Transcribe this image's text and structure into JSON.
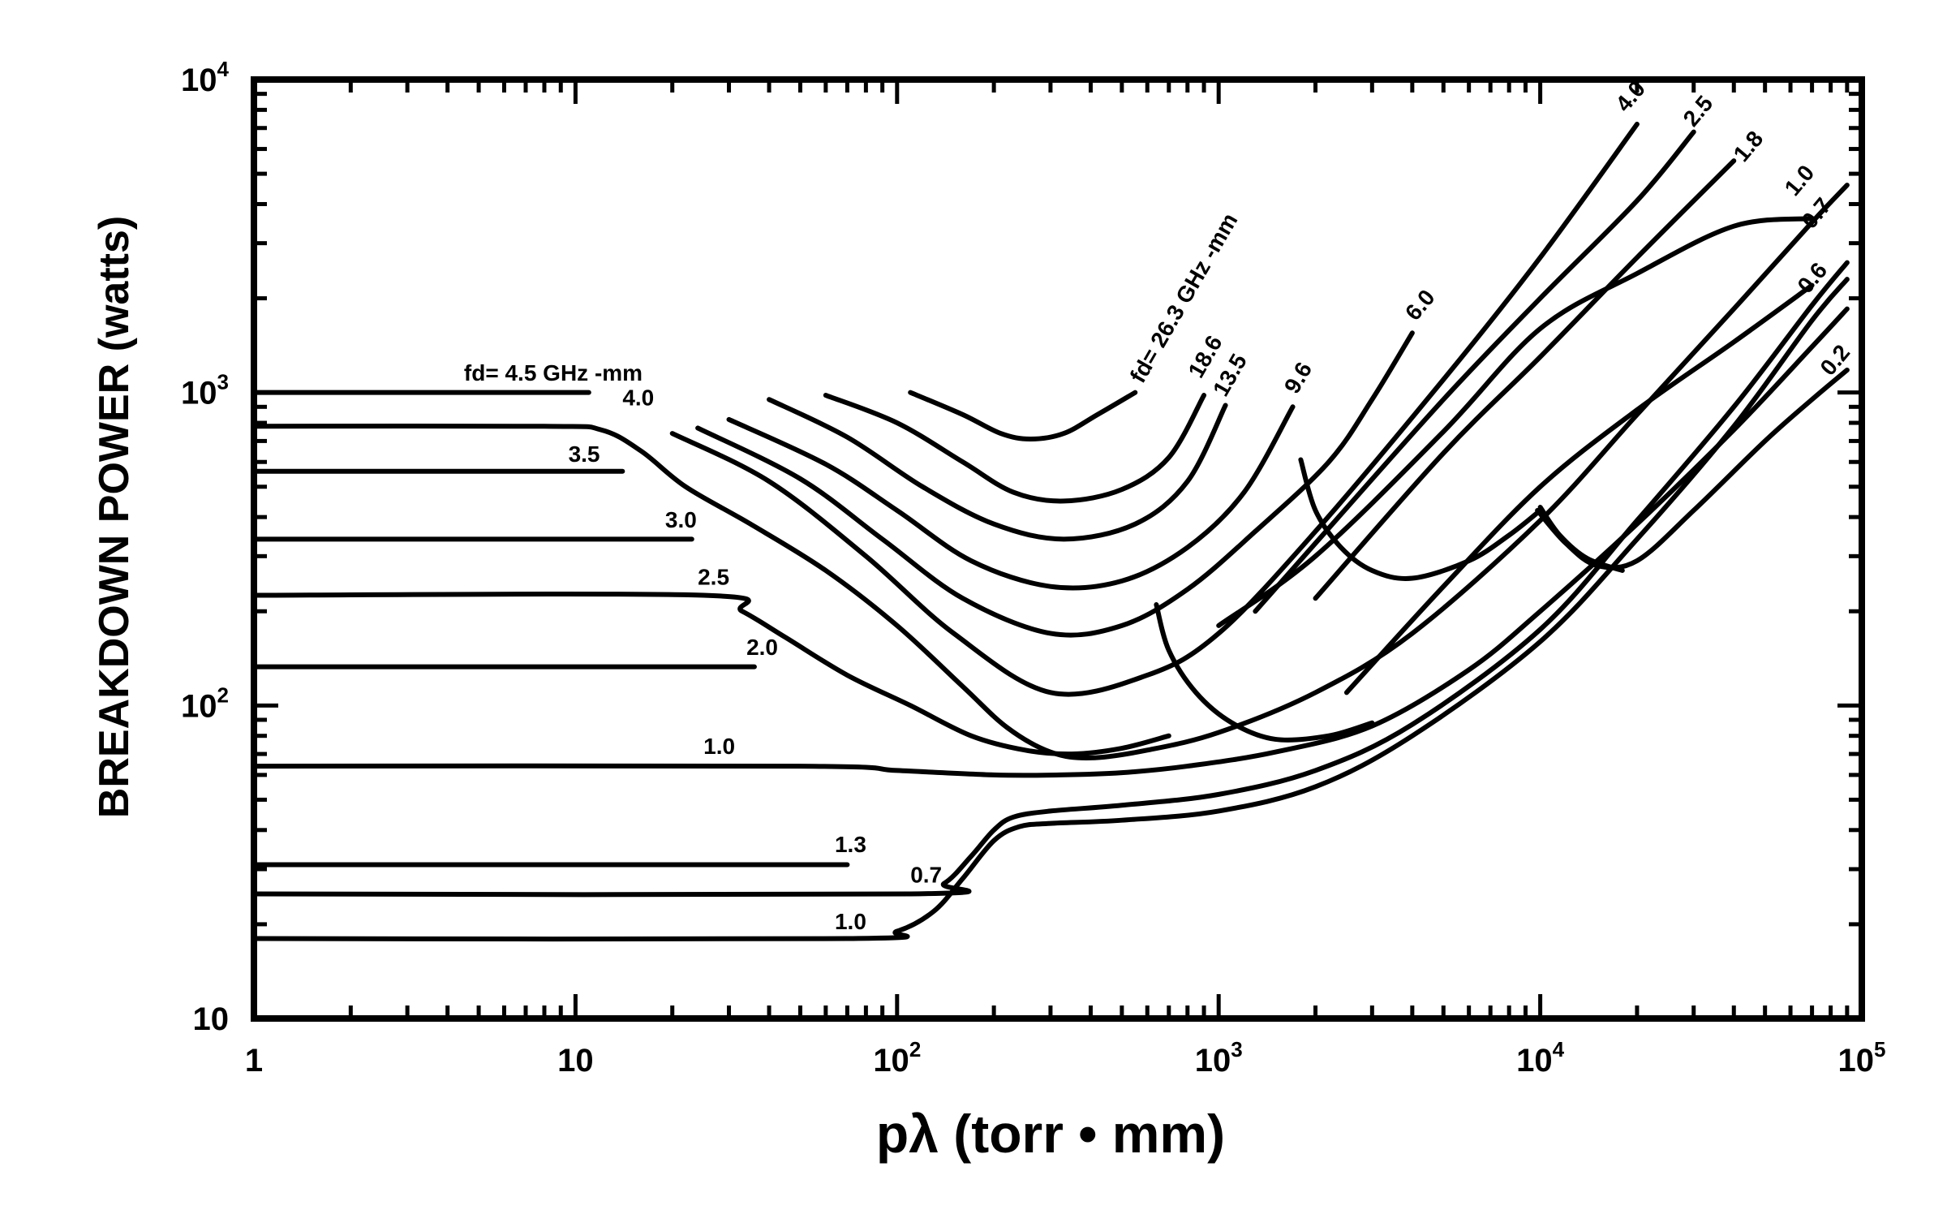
{
  "chart_data": {
    "type": "line",
    "xlabel": "pλ (torr • mm)",
    "ylabel": "BREAKDOWN POWER (watts)",
    "xscale": "log",
    "yscale": "log",
    "xlim": [
      1,
      100000
    ],
    "ylim": [
      10,
      10000
    ],
    "x_ticks": [
      {
        "value": 1,
        "base": "1",
        "exp": ""
      },
      {
        "value": 10,
        "base": "10",
        "exp": ""
      },
      {
        "value": 100,
        "base": "10",
        "exp": "2"
      },
      {
        "value": 1000,
        "base": "10",
        "exp": "3"
      },
      {
        "value": 10000,
        "base": "10",
        "exp": "4"
      },
      {
        "value": 100000,
        "base": "10",
        "exp": "5"
      }
    ],
    "y_ticks": [
      {
        "value": 10,
        "base": "10",
        "exp": ""
      },
      {
        "value": 100,
        "base": "10",
        "exp": "2"
      },
      {
        "value": 1000,
        "base": "10",
        "exp": "3"
      },
      {
        "value": 10000,
        "base": "10",
        "exp": "4"
      }
    ],
    "series": [
      {
        "name": "fd= 4.5 GHz -mm",
        "points": [
          [
            1,
            1000
          ],
          [
            11,
            1000
          ]
        ]
      },
      {
        "name": "4.0",
        "points": [
          [
            1,
            780
          ],
          [
            8,
            780
          ],
          [
            12,
            760
          ],
          [
            16,
            650
          ],
          [
            22,
            500
          ],
          [
            35,
            380
          ],
          [
            60,
            270
          ],
          [
            100,
            180
          ],
          [
            160,
            115
          ],
          [
            220,
            85
          ],
          [
            300,
            71
          ],
          [
            400,
            68
          ],
          [
            600,
            72
          ],
          [
            1000,
            82
          ],
          [
            2000,
            110
          ],
          [
            4000,
            170
          ],
          [
            10000,
            390
          ],
          [
            20000,
            850
          ],
          [
            40000,
            1850
          ],
          [
            70000,
            3500
          ],
          [
            90000,
            4600
          ]
        ]
      },
      {
        "name": "3.5",
        "points": [
          [
            1,
            560
          ],
          [
            14,
            560
          ]
        ]
      },
      {
        "name": "3.0",
        "points": [
          [
            1,
            340
          ],
          [
            23,
            340
          ]
        ]
      },
      {
        "name": "2.5",
        "points": [
          [
            1,
            225
          ],
          [
            25,
            225
          ],
          [
            33,
            200
          ],
          [
            45,
            165
          ],
          [
            70,
            125
          ],
          [
            110,
            100
          ],
          [
            170,
            80
          ],
          [
            250,
            72
          ],
          [
            350,
            70
          ],
          [
            500,
            73
          ],
          [
            700,
            80
          ]
        ]
      },
      {
        "name": "2.0",
        "points": [
          [
            1,
            133
          ],
          [
            36,
            133
          ]
        ]
      },
      {
        "name": "1.0",
        "points": [
          [
            1,
            64
          ],
          [
            50,
            64
          ],
          [
            100,
            62
          ],
          [
            200,
            60
          ],
          [
            320,
            60
          ],
          [
            500,
            61
          ],
          [
            800,
            64
          ],
          [
            1500,
            71
          ],
          [
            3000,
            86
          ],
          [
            6000,
            130
          ],
          [
            10000,
            200
          ],
          [
            20000,
            380
          ],
          [
            40000,
            760
          ],
          [
            70000,
            1400
          ],
          [
            90000,
            1850
          ]
        ]
      },
      {
        "name": "1.3",
        "points": [
          [
            1,
            31
          ],
          [
            70,
            31
          ]
        ]
      },
      {
        "name": "0.7",
        "points": [
          [
            1,
            25
          ],
          [
            110,
            25
          ],
          [
            140,
            27
          ],
          [
            170,
            33
          ],
          [
            200,
            40
          ],
          [
            230,
            44
          ],
          [
            300,
            46
          ],
          [
            500,
            48
          ],
          [
            1000,
            52
          ],
          [
            2000,
            62
          ],
          [
            4000,
            87
          ],
          [
            10000,
            175
          ],
          [
            20000,
            390
          ],
          [
            40000,
            900
          ],
          [
            70000,
            1900
          ],
          [
            90000,
            2600
          ]
        ]
      },
      {
        "name": "1.0",
        "points": [
          [
            1,
            18
          ],
          [
            70,
            18
          ],
          [
            100,
            19
          ],
          [
            130,
            22
          ],
          [
            160,
            28
          ],
          [
            200,
            37
          ],
          [
            240,
            41
          ],
          [
            300,
            42
          ],
          [
            500,
            43
          ],
          [
            1000,
            46
          ],
          [
            2000,
            55
          ],
          [
            4000,
            80
          ],
          [
            10000,
            160
          ],
          [
            20000,
            340
          ],
          [
            40000,
            780
          ],
          [
            70000,
            1700
          ],
          [
            90000,
            2300
          ]
        ]
      },
      {
        "name": "fd= 26.3 GHz -mm",
        "points": [
          [
            110,
            1000
          ],
          [
            160,
            850
          ],
          [
            210,
            740
          ],
          [
            260,
            710
          ],
          [
            330,
            740
          ],
          [
            420,
            850
          ],
          [
            550,
            1000
          ]
        ]
      },
      {
        "name": "18.6",
        "points": [
          [
            60,
            980
          ],
          [
            100,
            800
          ],
          [
            160,
            600
          ],
          [
            230,
            480
          ],
          [
            330,
            450
          ],
          [
            500,
            490
          ],
          [
            700,
            620
          ],
          [
            900,
            980
          ]
        ]
      },
      {
        "name": "13.5",
        "points": [
          [
            40,
            950
          ],
          [
            70,
            720
          ],
          [
            120,
            500
          ],
          [
            200,
            380
          ],
          [
            330,
            340
          ],
          [
            550,
            380
          ],
          [
            800,
            520
          ],
          [
            1050,
            910
          ]
        ]
      },
      {
        "name": "9.6",
        "points": [
          [
            30,
            820
          ],
          [
            60,
            590
          ],
          [
            100,
            420
          ],
          [
            170,
            290
          ],
          [
            300,
            240
          ],
          [
            500,
            250
          ],
          [
            800,
            320
          ],
          [
            1200,
            480
          ],
          [
            1700,
            900
          ]
        ]
      },
      {
        "name": "6.0",
        "points": [
          [
            24,
            770
          ],
          [
            50,
            530
          ],
          [
            90,
            340
          ],
          [
            160,
            220
          ],
          [
            300,
            170
          ],
          [
            500,
            180
          ],
          [
            800,
            235
          ],
          [
            1300,
            360
          ],
          [
            2200,
            600
          ],
          [
            3000,
            950
          ],
          [
            4000,
            1550
          ]
        ]
      },
      {
        "name": "4.0",
        "points": [
          [
            20,
            740
          ],
          [
            40,
            520
          ],
          [
            80,
            300
          ],
          [
            150,
            170
          ],
          [
            300,
            110
          ],
          [
            600,
            125
          ],
          [
            1000,
            170
          ],
          [
            2000,
            360
          ],
          [
            5000,
            1100
          ],
          [
            10000,
            2700
          ],
          [
            20000,
            7200
          ]
        ]
      },
      {
        "name": "2.5",
        "points": [
          [
            1300,
            200
          ],
          [
            2000,
            330
          ],
          [
            5000,
            950
          ],
          [
            10000,
            2000
          ],
          [
            20000,
            4100
          ],
          [
            30000,
            6800
          ]
        ]
      },
      {
        "name": "1.8",
        "points": [
          [
            2000,
            220
          ],
          [
            5000,
            640
          ],
          [
            10000,
            1300
          ],
          [
            20000,
            2700
          ],
          [
            40000,
            5500
          ]
        ]
      },
      {
        "name": "0.6",
        "points": [
          [
            2500,
            110
          ],
          [
            5000,
            240
          ],
          [
            10000,
            500
          ],
          [
            20000,
            880
          ],
          [
            40000,
            1450
          ],
          [
            70000,
            2200
          ]
        ]
      },
      {
        "name": "0.2",
        "points": [
          [
            9800,
            420
          ],
          [
            12000,
            330
          ],
          [
            15000,
            280
          ],
          [
            20000,
            290
          ],
          [
            30000,
            420
          ],
          [
            50000,
            700
          ],
          [
            70000,
            950
          ],
          [
            90000,
            1180
          ]
        ]
      },
      {
        "name": "0.7",
        "points": [
          [
            1000,
            180
          ],
          [
            2000,
            300
          ],
          [
            5000,
            750
          ],
          [
            10000,
            1600
          ],
          [
            20000,
            2400
          ],
          [
            40000,
            3400
          ],
          [
            70000,
            3600
          ]
        ]
      }
    ],
    "loci": [
      {
        "points": [
          [
            640,
            210
          ],
          [
            700,
            150
          ],
          [
            850,
            110
          ],
          [
            1100,
            88
          ],
          [
            1500,
            78
          ],
          [
            2200,
            80
          ],
          [
            3000,
            88
          ]
        ]
      },
      {
        "points": [
          [
            1800,
            610
          ],
          [
            2000,
            420
          ],
          [
            2400,
            320
          ],
          [
            3000,
            270
          ],
          [
            4000,
            255
          ],
          [
            6000,
            290
          ],
          [
            8000,
            350
          ],
          [
            10000,
            420
          ]
        ]
      },
      {
        "points": [
          [
            10000,
            430
          ],
          [
            11500,
            350
          ],
          [
            14000,
            295
          ],
          [
            18000,
            270
          ]
        ]
      }
    ],
    "labels": [
      {
        "text": "fd= 4.5 GHz -mm",
        "x": 4.5,
        "y": 1090,
        "rotate": 0
      },
      {
        "text": "4.0",
        "x": 14,
        "y": 910,
        "rotate": 0
      },
      {
        "text": "3.5",
        "x": 9.5,
        "y": 600,
        "rotate": 0
      },
      {
        "text": "3.0",
        "x": 19,
        "y": 370,
        "rotate": 0
      },
      {
        "text": "2.5",
        "x": 24,
        "y": 243,
        "rotate": 0
      },
      {
        "text": "2.0",
        "x": 34,
        "y": 145,
        "rotate": 0
      },
      {
        "text": "1.0",
        "x": 25,
        "y": 70,
        "rotate": 0
      },
      {
        "text": "1.3",
        "x": 64,
        "y": 34,
        "rotate": 0
      },
      {
        "text": "0.7",
        "x": 110,
        "y": 27.2,
        "rotate": 0
      },
      {
        "text": "1.0",
        "x": 64,
        "y": 19.3,
        "rotate": 0
      },
      {
        "text": "fd= 26.3 GHz -mm",
        "x": 580,
        "y": 1060,
        "rotate": -60
      },
      {
        "text": "18.6",
        "x": 880,
        "y": 1100,
        "rotate": -60
      },
      {
        "text": "13.5",
        "x": 1050,
        "y": 960,
        "rotate": -60
      },
      {
        "text": "9.6",
        "x": 1750,
        "y": 980,
        "rotate": -60
      },
      {
        "text": "6.0",
        "x": 4100,
        "y": 1680,
        "rotate": -50
      },
      {
        "text": "4.0",
        "x": 18500,
        "y": 7800,
        "rotate": -50
      },
      {
        "text": "2.5",
        "x": 30000,
        "y": 7000,
        "rotate": -50
      },
      {
        "text": "1.8",
        "x": 43000,
        "y": 5400,
        "rotate": -50
      },
      {
        "text": "1.0",
        "x": 62000,
        "y": 4200,
        "rotate": -50
      },
      {
        "text": "0.7",
        "x": 70000,
        "y": 3300,
        "rotate": -50
      },
      {
        "text": "0.6",
        "x": 68000,
        "y": 2050,
        "rotate": -50
      },
      {
        "text": "0.2",
        "x": 80000,
        "y": 1120,
        "rotate": -50
      }
    ]
  }
}
